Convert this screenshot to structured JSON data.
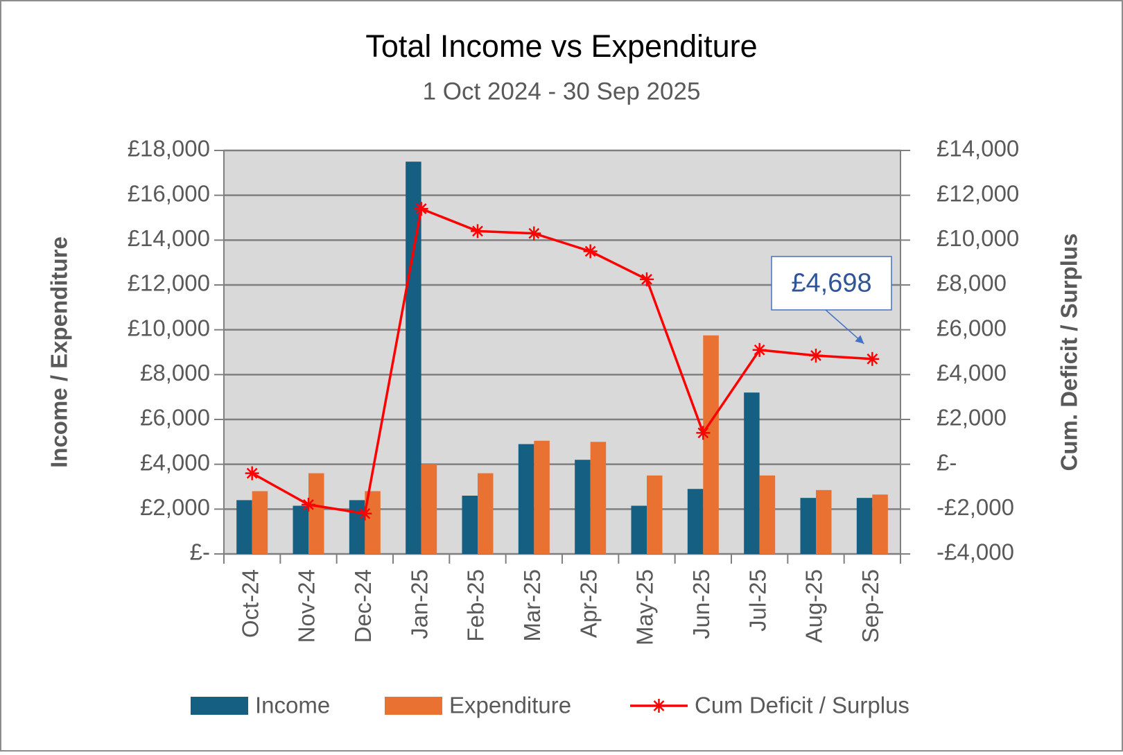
{
  "chart_data": {
    "type": "bar_line",
    "title": "Total Income vs Expenditure",
    "subtitle": "1 Oct 2024 - 30 Sep 2025",
    "y_label": "Income / Expenditure",
    "y2_label": "Cum. Deficit / Surplus",
    "categories": [
      "Oct-24",
      "Nov-24",
      "Dec-24",
      "Jan-25",
      "Feb-25",
      "Mar-25",
      "Apr-25",
      "May-25",
      "Jun-25",
      "Jul-25",
      "Aug-25",
      "Sep-25"
    ],
    "series": [
      {
        "name": "Income",
        "type": "bar",
        "color": "#156082",
        "values": [
          2400,
          2150,
          2400,
          17500,
          2600,
          4900,
          4200,
          2150,
          2900,
          7200,
          2500,
          2500
        ]
      },
      {
        "name": "Expenditure",
        "type": "bar",
        "color": "#e97132",
        "values": [
          2800,
          3600,
          2800,
          4000,
          3600,
          5050,
          5000,
          3500,
          9750,
          3500,
          2850,
          2650
        ]
      },
      {
        "name": "Cum Deficit / Surplus",
        "type": "line",
        "axis": "y2",
        "color": "#ff0000",
        "values": [
          -400,
          -1800,
          -2200,
          11400,
          10400,
          10300,
          9500,
          8250,
          1400,
          5100,
          4850,
          4698
        ]
      }
    ],
    "ylim": [
      0,
      18000
    ],
    "yticks": [
      {
        "value": 0,
        "label": "£-"
      },
      {
        "value": 2000,
        "label": "£2,000"
      },
      {
        "value": 4000,
        "label": "£4,000"
      },
      {
        "value": 6000,
        "label": "£6,000"
      },
      {
        "value": 8000,
        "label": "£8,000"
      },
      {
        "value": 10000,
        "label": "£10,000"
      },
      {
        "value": 12000,
        "label": "£12,000"
      },
      {
        "value": 14000,
        "label": "£14,000"
      },
      {
        "value": 16000,
        "label": "£16,000"
      },
      {
        "value": 18000,
        "label": "£18,000"
      }
    ],
    "y2lim": [
      -4000,
      14000
    ],
    "y2ticks": [
      {
        "value": -4000,
        "label": "-£4,000"
      },
      {
        "value": -2000,
        "label": "-£2,000"
      },
      {
        "value": 0,
        "label": "£-"
      },
      {
        "value": 2000,
        "label": "£2,000"
      },
      {
        "value": 4000,
        "label": "£4,000"
      },
      {
        "value": 6000,
        "label": "£6,000"
      },
      {
        "value": 8000,
        "label": "£8,000"
      },
      {
        "value": 10000,
        "label": "£10,000"
      },
      {
        "value": 12000,
        "label": "£12,000"
      },
      {
        "value": 14000,
        "label": "£14,000"
      }
    ],
    "grid": true,
    "legend": "bottom",
    "annotations": [
      {
        "text": "£4,698",
        "series": 2,
        "index": 11
      }
    ]
  }
}
